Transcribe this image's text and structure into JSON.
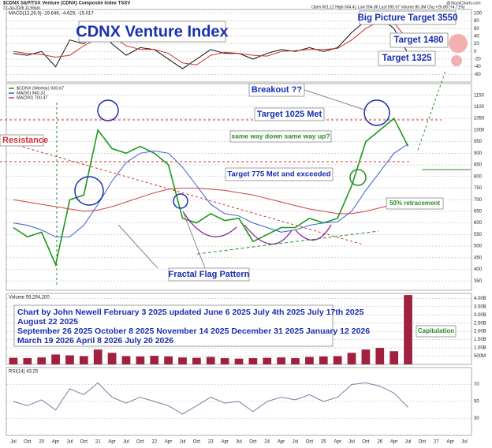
{
  "page": {
    "symbol_line": "$CDNX S&P/TSX Venture (CDNX) Composite Index TSXV",
    "date": "22-Jul-2026 11:59am",
    "quote": "Open 601.12 High 604.41 Low 594.86 Last 595.67 Volume 80.3M Chg +26.88 (+4.71%)",
    "credit": "@StockCharts.com"
  },
  "annotations": {
    "main_title": "CDNX Venture Index",
    "big_target": "Big Picture Target 3550",
    "target_1480": "Target 1480",
    "target_1325": "Target 1325",
    "breakout": "Breakout ??",
    "target_1025": "Target 1025 Met",
    "resistance": "Resistance",
    "same_way": "same way down same way up?",
    "target_775": "Target 775 Met and exceeded",
    "retracement": "50% retracement",
    "fractal": "Fractal Flag Pattern",
    "capitulation": "Capitulation",
    "text_box": [
      "Chart by John Newell February 3 2025 updated June 6 2025 July 4th 2025 July 17th 2025",
      "August 22 2025",
      "September 26 2025  October 8 2025 November 14 2025  December 31  2025 January 12 2026",
      "March 19 2026 April 8 2026 July 20 2026"
    ]
  },
  "chart_data": [
    {
      "type": "line",
      "title": "MACD(12,26,9) -19.646, -4.629, -15.017",
      "ylim": [
        -80,
        110
      ],
      "yticks": [
        -60,
        -40,
        -20,
        0,
        20,
        40,
        60,
        80,
        100
      ],
      "grid": true,
      "series": [
        {
          "color": "#111111",
          "values": [
            -5,
            -10,
            0,
            -40,
            30,
            20,
            60,
            20,
            -10,
            10,
            5,
            -20,
            -45,
            -20,
            5,
            -5,
            -5,
            -20,
            -5,
            5,
            0,
            10,
            0,
            10,
            50,
            80,
            90,
            60,
            -5,
            null,
            null,
            null,
            null
          ]
        },
        {
          "color": "#d03030",
          "values": [
            0,
            -5,
            -8,
            -15,
            -10,
            15,
            35,
            40,
            15,
            5,
            5,
            -5,
            -30,
            -35,
            -10,
            -2,
            -5,
            -10,
            -12,
            0,
            2,
            5,
            5,
            8,
            30,
            60,
            80,
            75,
            30,
            null,
            null,
            null,
            null
          ]
        }
      ]
    },
    {
      "type": "line",
      "ylim": [
        310,
        1200
      ],
      "yticks": [
        350,
        400,
        450,
        500,
        550,
        600,
        650,
        700,
        750,
        800,
        850,
        900,
        950,
        1000,
        1050,
        1100,
        1150
      ],
      "grid": true,
      "series": [
        {
          "name": "$CDNX (Weekly) 930.67",
          "color": "#1a9a1a",
          "values": [
            580,
            540,
            560,
            420,
            700,
            720,
            1000,
            920,
            900,
            930,
            900,
            850,
            620,
            600,
            640,
            610,
            620,
            520,
            550,
            580,
            580,
            620,
            600,
            620,
            760,
            950,
            1000,
            1050,
            930,
            null,
            null,
            null,
            null
          ]
        },
        {
          "name": "MA(50) 940.32",
          "color": "#3a5fcd",
          "values": [
            600,
            590,
            570,
            540,
            540,
            590,
            680,
            780,
            860,
            900,
            910,
            900,
            840,
            760,
            680,
            640,
            630,
            600,
            580,
            560,
            570,
            590,
            600,
            605,
            650,
            740,
            820,
            900,
            940,
            null,
            null,
            null,
            null
          ]
        },
        {
          "name": "MA(200) 700.47",
          "color": "#d04040",
          "values": [
            700,
            690,
            680,
            670,
            660,
            650,
            655,
            670,
            690,
            710,
            730,
            745,
            750,
            750,
            745,
            740,
            730,
            720,
            705,
            690,
            675,
            660,
            650,
            640,
            640,
            650,
            665,
            680,
            700,
            null,
            null,
            null,
            null
          ]
        }
      ]
    },
    {
      "type": "bar",
      "title": "Volume 59,294,200",
      "ylim": [
        0,
        4300
      ],
      "grid": true,
      "yticks": [
        {
          "value": 500,
          "label": "500M"
        },
        {
          "value": 1000,
          "label": "1.00B"
        },
        {
          "value": 1500,
          "label": "1.50B"
        },
        {
          "value": 2000,
          "label": "2.00B"
        },
        {
          "value": 2500,
          "label": "2.50B"
        },
        {
          "value": 3000,
          "label": "3.00B"
        },
        {
          "value": 3500,
          "label": "3.50B"
        },
        {
          "value": 4000,
          "label": "4.00B"
        }
      ],
      "color": "#a02040",
      "values": [
        400,
        380,
        420,
        600,
        550,
        500,
        900,
        700,
        500,
        480,
        520,
        480,
        420,
        400,
        450,
        380,
        350,
        380,
        400,
        420,
        380,
        450,
        480,
        500,
        700,
        900,
        1000,
        800,
        4200,
        null,
        null,
        null,
        null
      ]
    },
    {
      "type": "line",
      "title": "RSI(14) 43.25",
      "ylim": [
        10,
        90
      ],
      "yticks": [
        30,
        50,
        70
      ],
      "grid": true,
      "categories": [
        "Jul",
        "Oct",
        "20",
        "Apr",
        "Jul",
        "Oct",
        "21",
        "Apr",
        "Jul",
        "Oct",
        "22",
        "Apr",
        "Jul",
        "Oct",
        "23",
        "Apr",
        "Jul",
        "Oct",
        "24",
        "Apr",
        "Jul",
        "Oct",
        "25",
        "Apr",
        "Jul",
        "Oct",
        "26",
        "Apr",
        "Jul",
        "Oct",
        "27",
        "Apr",
        "Jul"
      ],
      "series": [
        {
          "color": "#7080a0",
          "values": [
            50,
            45,
            52,
            40,
            65,
            58,
            72,
            55,
            48,
            55,
            50,
            45,
            35,
            45,
            55,
            48,
            50,
            38,
            50,
            55,
            52,
            58,
            50,
            55,
            70,
            72,
            68,
            60,
            43,
            null,
            null,
            null,
            null
          ]
        }
      ]
    }
  ]
}
